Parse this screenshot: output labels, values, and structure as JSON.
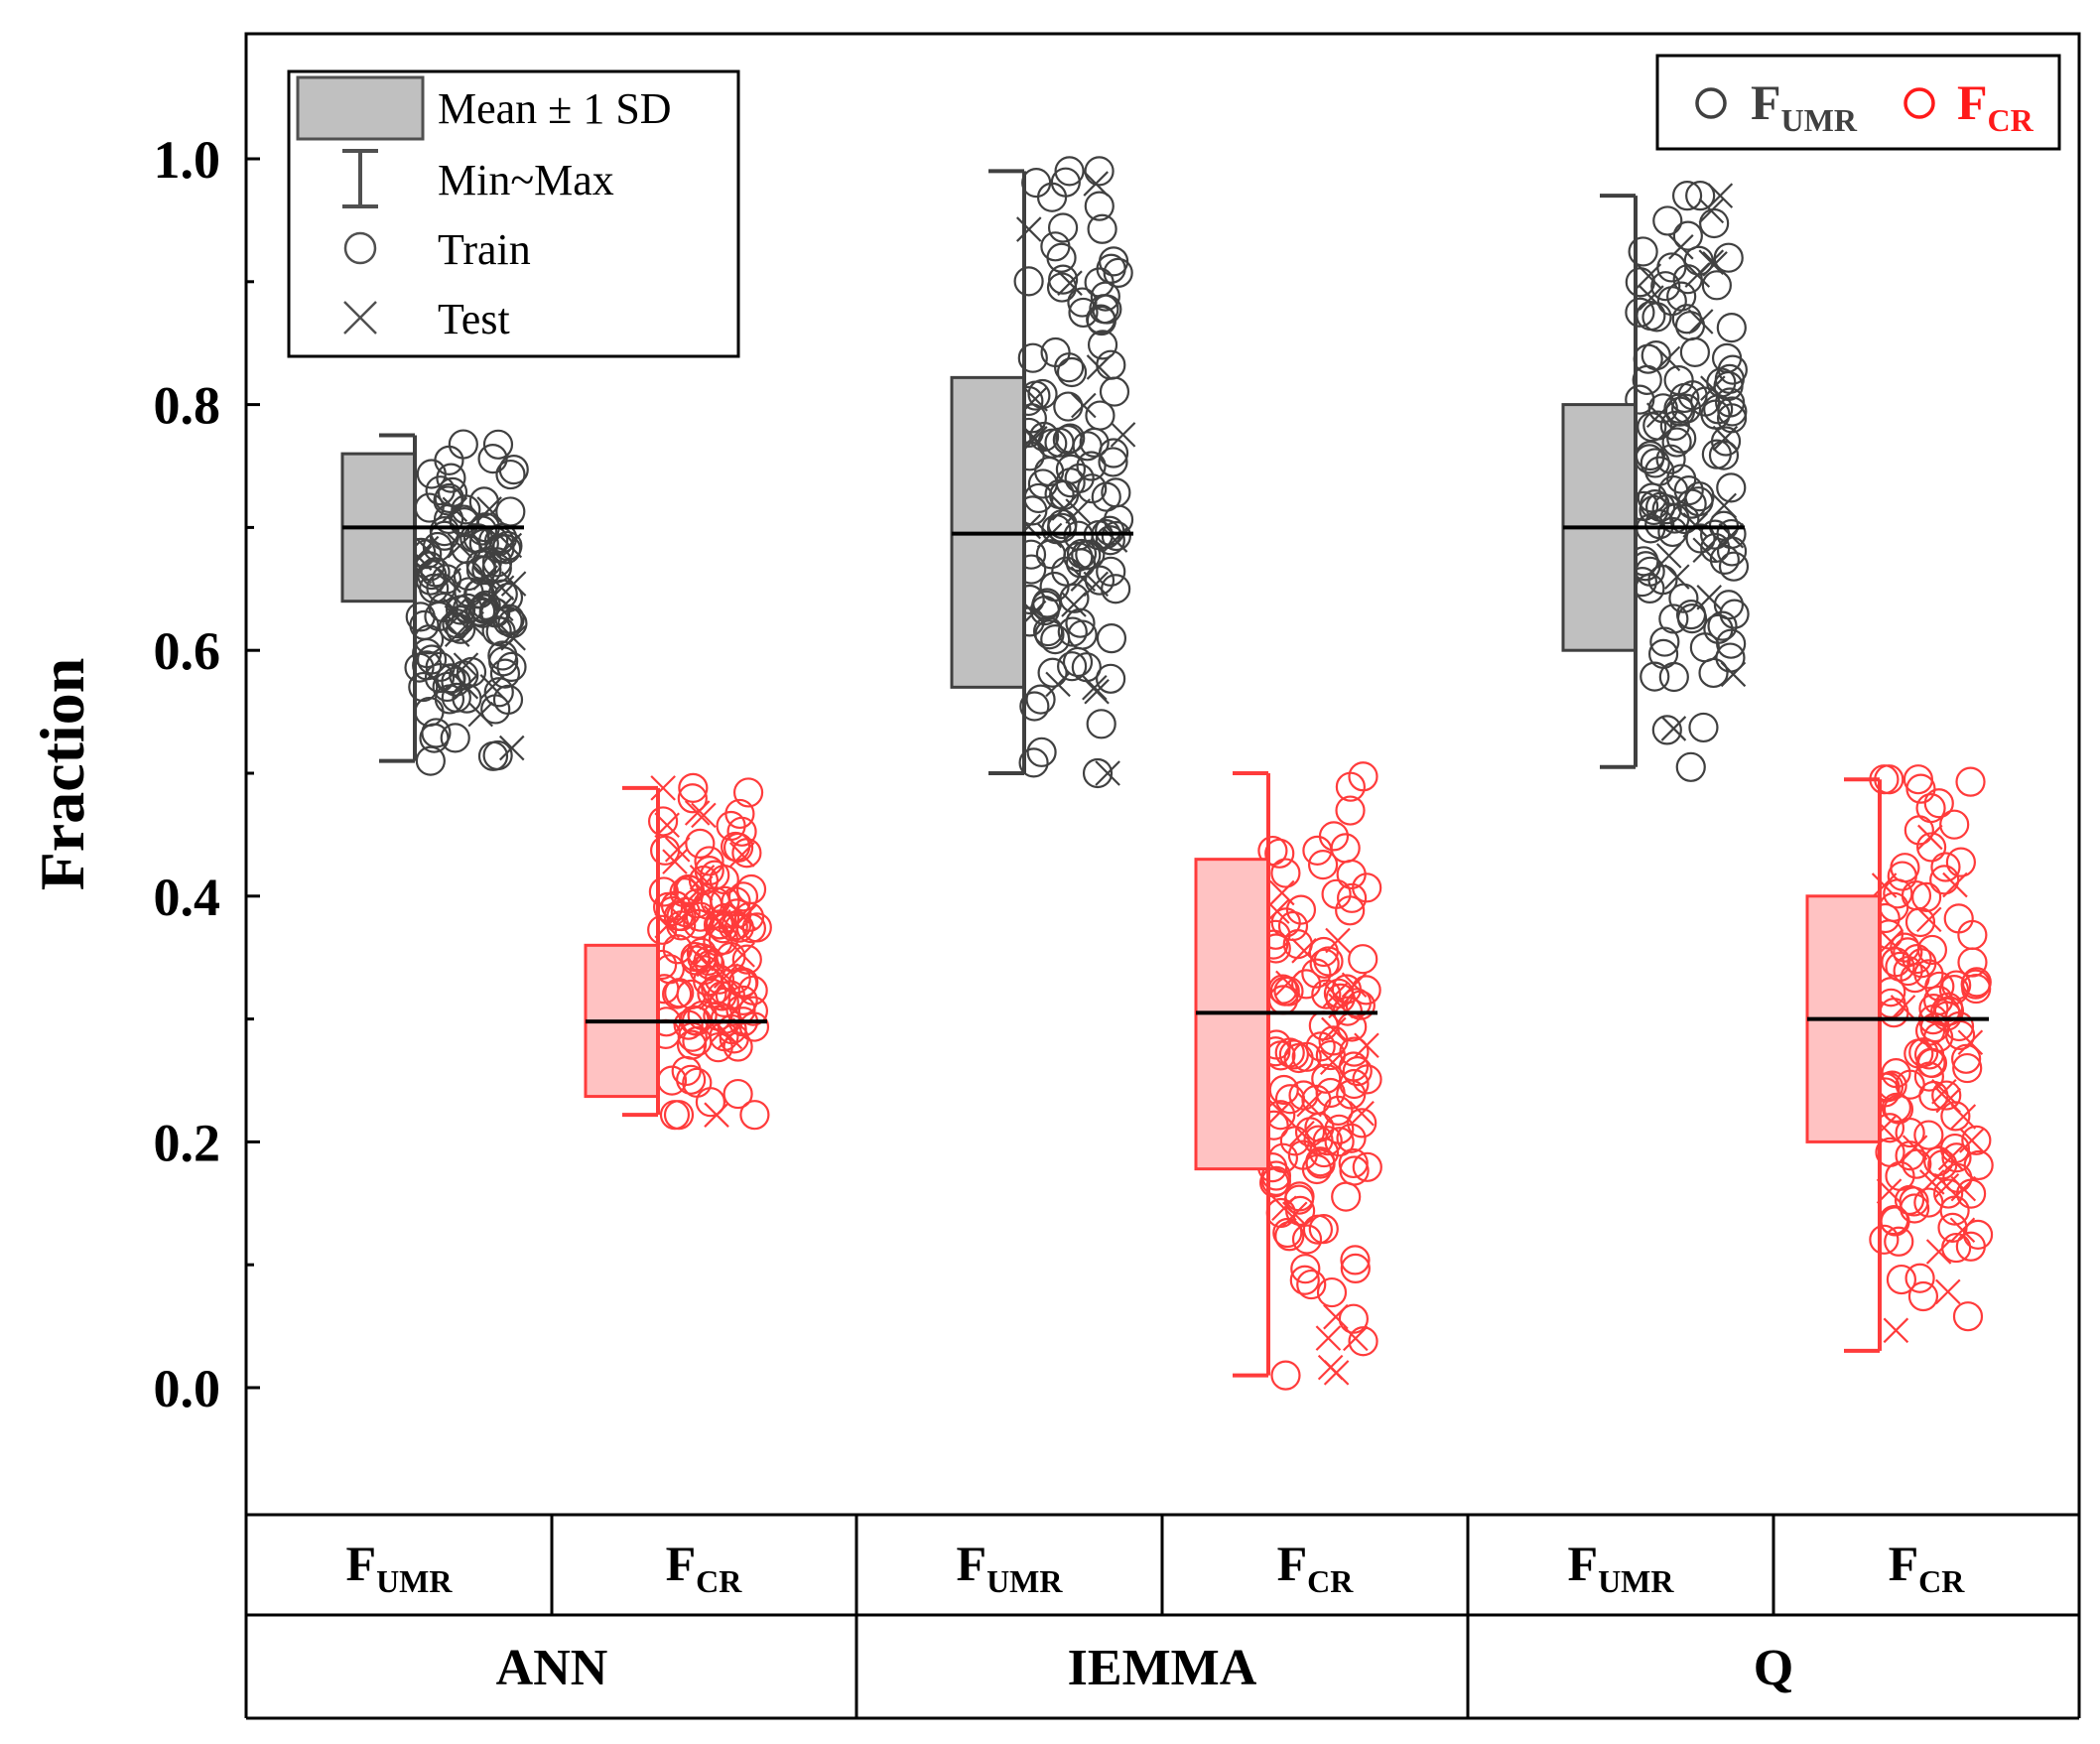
{
  "chart_data": {
    "type": "box",
    "ylabel": "Fraction",
    "ylim": [
      -0.1,
      1.1
    ],
    "yticks": [
      0.0,
      0.2,
      0.4,
      0.6,
      0.8,
      1.0
    ],
    "ytick_labels": [
      "0.0",
      "0.2",
      "0.4",
      "0.6",
      "0.8",
      "1.0"
    ],
    "legend_left": {
      "placement": "top-left",
      "items": [
        {
          "symbol": "box",
          "label": "Mean ± 1 SD"
        },
        {
          "symbol": "whisker",
          "label": "Min~Max"
        },
        {
          "symbol": "circle",
          "label": "Train"
        },
        {
          "symbol": "cross",
          "label": "Test"
        }
      ]
    },
    "legend_right": {
      "placement": "top-right",
      "items": [
        {
          "main": "F",
          "sub": "UMR",
          "color": "#404040"
        },
        {
          "main": "F",
          "sub": "CR",
          "color": "#ff1a1a"
        }
      ]
    },
    "x_sub_labels": [
      {
        "main": "F",
        "sub": "UMR"
      },
      {
        "main": "F",
        "sub": "CR"
      },
      {
        "main": "F",
        "sub": "UMR"
      },
      {
        "main": "F",
        "sub": "CR"
      },
      {
        "main": "F",
        "sub": "UMR"
      },
      {
        "main": "F",
        "sub": "CR"
      }
    ],
    "x_group_labels": [
      "ANN",
      "IEMMA",
      "Q"
    ],
    "series": [
      {
        "name": "F_UMR",
        "group": "ANN",
        "color": "#404040",
        "fill": "#c0c0c0",
        "mean": 0.7,
        "sd_low": 0.64,
        "sd_high": 0.76,
        "min": 0.51,
        "max": 0.775,
        "scatter_range": [
          0.51,
          0.775
        ]
      },
      {
        "name": "F_CR",
        "group": "ANN",
        "color": "#ff3b3b",
        "fill": "#ffc2c2",
        "mean": 0.298,
        "sd_low": 0.237,
        "sd_high": 0.36,
        "min": 0.222,
        "max": 0.488,
        "scatter_range": [
          0.222,
          0.488
        ]
      },
      {
        "name": "F_UMR",
        "group": "IEMMA",
        "color": "#404040",
        "fill": "#c0c0c0",
        "mean": 0.695,
        "sd_low": 0.57,
        "sd_high": 0.822,
        "min": 0.5,
        "max": 0.99,
        "scatter_range": [
          0.5,
          0.99
        ]
      },
      {
        "name": "F_CR",
        "group": "IEMMA",
        "color": "#ff3b3b",
        "fill": "#ffc2c2",
        "mean": 0.305,
        "sd_low": 0.178,
        "sd_high": 0.43,
        "min": 0.01,
        "max": 0.5,
        "scatter_range": [
          0.01,
          0.5
        ]
      },
      {
        "name": "F_UMR",
        "group": "Q",
        "color": "#404040",
        "fill": "#c0c0c0",
        "mean": 0.7,
        "sd_low": 0.6,
        "sd_high": 0.8,
        "min": 0.505,
        "max": 0.97,
        "scatter_range": [
          0.505,
          0.97
        ]
      },
      {
        "name": "F_CR",
        "group": "Q",
        "color": "#ff3b3b",
        "fill": "#ffc2c2",
        "mean": 0.3,
        "sd_low": 0.2,
        "sd_high": 0.4,
        "min": 0.03,
        "max": 0.495,
        "scatter_range": [
          0.03,
          0.495
        ]
      }
    ]
  }
}
